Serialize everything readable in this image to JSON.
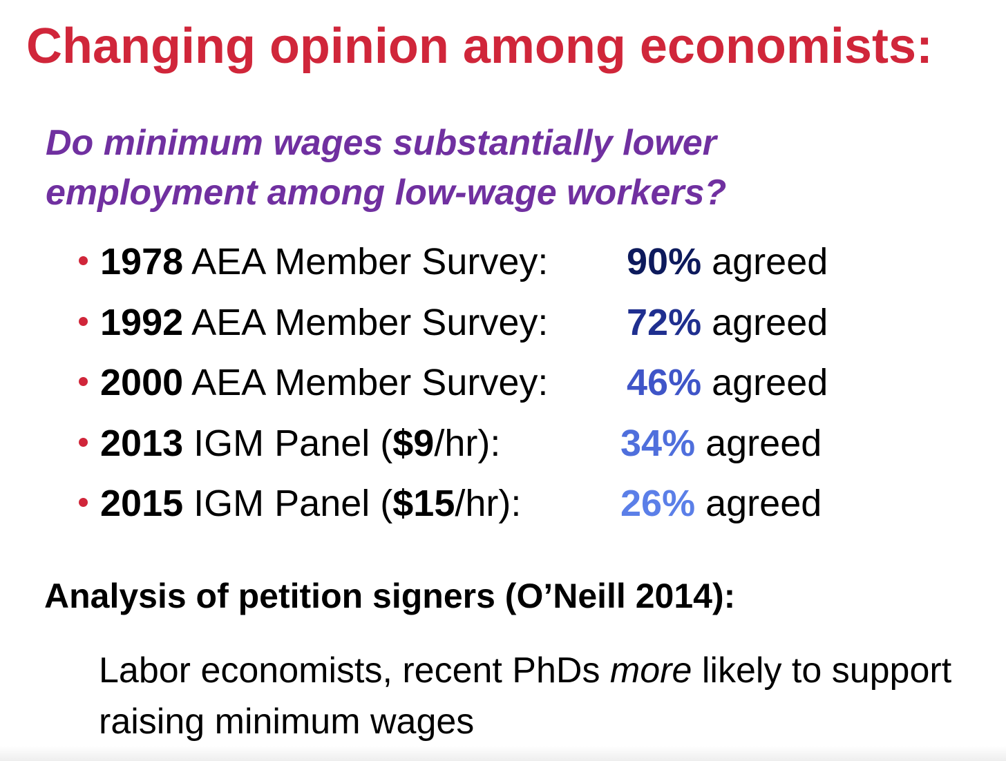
{
  "title": "Changing opinion among economists:",
  "question": {
    "lines": [
      "Do minimum wages substantially lower",
      "employment among low-wage workers?"
    ]
  },
  "bullets": [
    {
      "year": "1978",
      "text": "AEA Member Survey:",
      "percent": "90%",
      "tail": "agreed"
    },
    {
      "year": "1992",
      "text": "AEA Member Survey:",
      "percent": "72%",
      "tail": "agreed"
    },
    {
      "year": "2000",
      "text": "AEA Member Survey:",
      "percent": "46%",
      "tail": "agreed"
    },
    {
      "year": "2013",
      "text": "IGM Panel (",
      "bold": "$9",
      "text2": "/hr):",
      "percent": "34%",
      "tail": "agreed"
    },
    {
      "year": "2015",
      "text": "IGM Panel (",
      "bold": "$15",
      "text2": "/hr):",
      "percent": "26%",
      "tail": "agreed"
    }
  ],
  "analysis": {
    "heading": "Analysis of petition signers (O’Neill 2014):",
    "body": {
      "before": "Labor economists, recent PhDs",
      "italic": "more",
      "after": "likely to support raising minimum wages"
    }
  }
}
